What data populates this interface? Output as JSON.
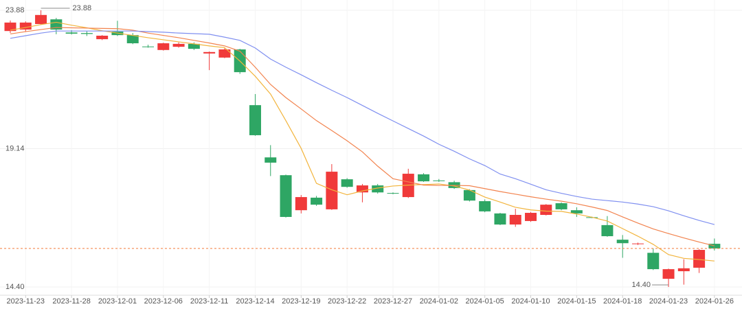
{
  "chart_data": {
    "type": "candlestick",
    "categories": [
      null,
      "2023-11-23",
      null,
      null,
      "2023-11-28",
      null,
      null,
      "2023-12-01",
      null,
      null,
      "2023-12-06",
      null,
      null,
      "2023-12-11",
      null,
      null,
      "2023-12-14",
      null,
      null,
      "2023-12-19",
      null,
      null,
      "2023-12-22",
      null,
      null,
      "2023-12-27",
      null,
      null,
      "2024-01-02",
      null,
      null,
      "2024-01-05",
      null,
      null,
      "2024-01-10",
      null,
      null,
      "2024-01-15",
      null,
      null,
      "2024-01-18",
      null,
      null,
      "2024-01-23",
      null,
      null,
      "2024-01-26"
    ],
    "open": [
      23.17,
      23.22,
      23.41,
      23.57,
      23.12,
      23.1,
      22.89,
      23.15,
      23.03,
      22.64,
      22.52,
      22.63,
      22.73,
      22.4,
      22.26,
      22.54,
      20.63,
      18.84,
      18.23,
      17.03,
      17.46,
      17.06,
      18.09,
      17.64,
      17.88,
      17.62,
      17.48,
      18.26,
      18.05,
      17.99,
      17.72,
      17.34,
      16.92,
      16.54,
      16.66,
      16.87,
      17.27,
      17.03,
      16.79,
      16.52,
      16.02,
      15.87,
      15.57,
      14.68,
      14.94,
      15.06,
      15.88
    ],
    "high": [
      23.53,
      23.5,
      23.88,
      23.62,
      23.2,
      23.16,
      23.03,
      23.52,
      23.1,
      22.7,
      22.77,
      22.78,
      22.78,
      22.47,
      22.58,
      22.56,
      21.01,
      19.26,
      18.25,
      17.55,
      17.52,
      18.61,
      18.13,
      17.93,
      17.93,
      17.64,
      18.45,
      18.3,
      18.1,
      18.04,
      17.75,
      17.4,
      16.94,
      17.08,
      16.97,
      17.24,
      17.3,
      17.13,
      16.81,
      16.83,
      16.18,
      15.92,
      15.72,
      15.03,
      15.35,
      15.7,
      16.06
    ],
    "low": [
      23.1,
      23.15,
      23.38,
      23.06,
      23.05,
      23.0,
      22.86,
      23.0,
      22.72,
      22.6,
      22.5,
      22.6,
      22.52,
      21.83,
      22.24,
      21.7,
      19.58,
      18.2,
      16.78,
      16.92,
      17.18,
      17.04,
      17.8,
      17.3,
      17.6,
      17.58,
      17.45,
      18.0,
      18.0,
      17.76,
      17.33,
      16.96,
      16.52,
      16.46,
      16.63,
      16.85,
      17.03,
      16.8,
      16.76,
      16.12,
      15.4,
      15.84,
      14.98,
      14.4,
      14.48,
      14.88,
      15.65
    ],
    "close": [
      23.46,
      23.46,
      23.72,
      23.22,
      23.08,
      23.07,
      23.01,
      23.03,
      22.75,
      22.63,
      22.75,
      22.73,
      22.56,
      22.45,
      22.54,
      21.76,
      19.6,
      18.66,
      16.8,
      17.48,
      17.22,
      18.35,
      17.83,
      17.88,
      17.64,
      17.6,
      18.28,
      18.02,
      18.03,
      17.79,
      17.36,
      16.99,
      16.54,
      16.87,
      16.94,
      17.22,
      17.06,
      16.92,
      16.77,
      16.14,
      15.9,
      15.89,
      15.01,
      15.01,
      15.04,
      15.67,
      15.72
    ],
    "colors": {
      "up": "#f03a3a",
      "down": "#2ea664",
      "last_line": "#f47b3a"
    },
    "lines": [
      {
        "color": "#f2b43c",
        "values": [
          23.2,
          23.29,
          23.39,
          23.47,
          23.37,
          23.28,
          23.18,
          23.1,
          23.02,
          22.94,
          22.87,
          22.8,
          22.73,
          22.66,
          22.6,
          22.14,
          21.62,
          21.01,
          20.1,
          19.15,
          17.95,
          17.73,
          17.56,
          17.69,
          17.79,
          17.86,
          17.89,
          17.91,
          17.93,
          17.86,
          17.72,
          17.48,
          17.31,
          17.13,
          17.04,
          17.0,
          16.99,
          16.9,
          16.79,
          16.66,
          16.4,
          16.14,
          15.86,
          15.51,
          15.38,
          15.34,
          15.29
        ]
      },
      {
        "color": "#f2834e",
        "values": [
          23.07,
          23.15,
          23.22,
          23.29,
          23.28,
          23.27,
          23.26,
          23.25,
          23.2,
          23.1,
          23.02,
          22.94,
          22.85,
          22.76,
          22.66,
          22.48,
          21.93,
          21.34,
          20.89,
          20.5,
          20.1,
          19.76,
          19.41,
          19.03,
          18.54,
          18.11,
          18.0,
          17.89,
          17.88,
          17.88,
          17.87,
          17.77,
          17.67,
          17.58,
          17.49,
          17.41,
          17.34,
          17.25,
          17.14,
          17.02,
          16.8,
          16.59,
          16.39,
          16.23,
          16.08,
          15.94,
          15.81
        ]
      },
      {
        "color": "#7f8ff0",
        "values": [
          22.92,
          23.01,
          23.1,
          23.17,
          23.17,
          23.17,
          23.17,
          23.17,
          23.17,
          23.15,
          23.13,
          23.1,
          23.08,
          23.06,
          22.96,
          22.85,
          22.59,
          22.21,
          21.93,
          21.67,
          21.4,
          21.14,
          20.89,
          20.62,
          20.35,
          20.09,
          19.83,
          19.57,
          19.29,
          19.05,
          18.79,
          18.56,
          18.27,
          18.11,
          17.92,
          17.73,
          17.61,
          17.5,
          17.41,
          17.36,
          17.31,
          17.24,
          17.15,
          17.01,
          16.84,
          16.68,
          16.54
        ]
      }
    ],
    "annotations": [
      {
        "value": 23.88,
        "label": "23.88"
      },
      {
        "value": 14.4,
        "label": "14.40"
      }
    ],
    "ylim": [
      14.4,
      23.88
    ],
    "yticks": [
      {
        "value": 14.4,
        "label": "14.40"
      },
      19.14,
      23.88
    ],
    "grid": true
  }
}
